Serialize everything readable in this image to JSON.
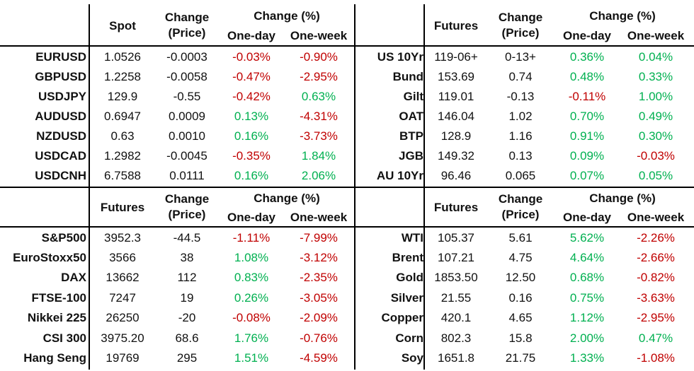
{
  "colors": {
    "positive": "#00b050",
    "negative": "#c00000",
    "text": "#111111"
  },
  "headers": {
    "change": "Change",
    "price": "(Price)",
    "change_pct": "Change (%)",
    "one_day": "One-day",
    "one_week": "One-week"
  },
  "panels": [
    {
      "title": "Spot",
      "rows": [
        {
          "name": "EURUSD",
          "value": "1.0526",
          "change": "-0.0003",
          "day": "-0.03%",
          "week": "-0.90%"
        },
        {
          "name": "GBPUSD",
          "value": "1.2258",
          "change": "-0.0058",
          "day": "-0.47%",
          "week": "-2.95%"
        },
        {
          "name": "USDJPY",
          "value": "129.9",
          "change": "-0.55",
          "day": "-0.42%",
          "week": "0.63%"
        },
        {
          "name": "AUDUSD",
          "value": "0.6947",
          "change": "0.0009",
          "day": "0.13%",
          "week": "-4.31%"
        },
        {
          "name": "NZDUSD",
          "value": "0.63",
          "change": "0.0010",
          "day": "0.16%",
          "week": "-3.73%"
        },
        {
          "name": "USDCAD",
          "value": "1.2982",
          "change": "-0.0045",
          "day": "-0.35%",
          "week": "1.84%"
        },
        {
          "name": "USDCNH",
          "value": "6.7588",
          "change": "0.0111",
          "day": "0.16%",
          "week": "2.06%"
        }
      ]
    },
    {
      "title": "Futures",
      "rows": [
        {
          "name": "US 10Yr",
          "value": "119-06+",
          "change": "0-13+",
          "day": "0.36%",
          "week": "0.04%"
        },
        {
          "name": "Bund",
          "value": "153.69",
          "change": "0.74",
          "day": "0.48%",
          "week": "0.33%"
        },
        {
          "name": "Gilt",
          "value": "119.01",
          "change": "-0.13",
          "day": "-0.11%",
          "week": "1.00%"
        },
        {
          "name": "OAT",
          "value": "146.04",
          "change": "1.02",
          "day": "0.70%",
          "week": "0.49%"
        },
        {
          "name": "BTP",
          "value": "128.9",
          "change": "1.16",
          "day": "0.91%",
          "week": "0.30%"
        },
        {
          "name": "JGB",
          "value": "149.32",
          "change": "0.13",
          "day": "0.09%",
          "week": "-0.03%"
        },
        {
          "name": "AU 10Yr",
          "value": "96.46",
          "change": "0.065",
          "day": "0.07%",
          "week": "0.05%"
        }
      ]
    },
    {
      "title": "Futures",
      "rows": [
        {
          "name": "S&P500",
          "value": "3952.3",
          "change": "-44.5",
          "day": "-1.11%",
          "week": "-7.99%"
        },
        {
          "name": "EuroStoxx50",
          "value": "3566",
          "change": "38",
          "day": "1.08%",
          "week": "-3.12%"
        },
        {
          "name": "DAX",
          "value": "13662",
          "change": "112",
          "day": "0.83%",
          "week": "-2.35%"
        },
        {
          "name": "FTSE-100",
          "value": "7247",
          "change": "19",
          "day": "0.26%",
          "week": "-3.05%"
        },
        {
          "name": "Nikkei 225",
          "value": "26250",
          "change": "-20",
          "day": "-0.08%",
          "week": "-2.09%"
        },
        {
          "name": "CSI 300",
          "value": "3975.20",
          "change": "68.6",
          "day": "1.76%",
          "week": "-0.76%"
        },
        {
          "name": "Hang Seng",
          "value": "19769",
          "change": "295",
          "day": "1.51%",
          "week": "-4.59%"
        }
      ]
    },
    {
      "title": "Futures",
      "rows": [
        {
          "name": "WTI",
          "value": "105.37",
          "change": "5.61",
          "day": "5.62%",
          "week": "-2.26%"
        },
        {
          "name": "Brent",
          "value": "107.21",
          "change": "4.75",
          "day": "4.64%",
          "week": "-2.66%"
        },
        {
          "name": "Gold",
          "value": "1853.50",
          "change": "12.50",
          "day": "0.68%",
          "week": "-0.82%"
        },
        {
          "name": "Silver",
          "value": "21.55",
          "change": "0.16",
          "day": "0.75%",
          "week": "-3.63%"
        },
        {
          "name": "Copper",
          "value": "420.1",
          "change": "4.65",
          "day": "1.12%",
          "week": "-2.95%"
        },
        {
          "name": "Corn",
          "value": "802.3",
          "change": "15.8",
          "day": "2.00%",
          "week": "0.47%"
        },
        {
          "name": "Soy",
          "value": "1651.8",
          "change": "21.75",
          "day": "1.33%",
          "week": "-1.08%"
        }
      ]
    }
  ]
}
